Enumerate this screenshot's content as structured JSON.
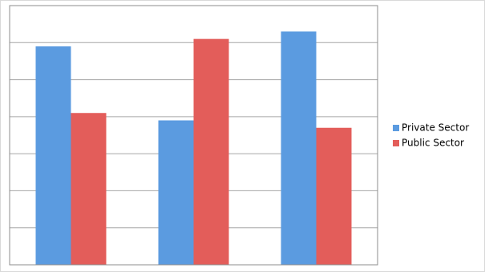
{
  "chart_data": {
    "type": "bar",
    "categories": [
      null,
      null,
      null
    ],
    "series": [
      {
        "name": "Private Sector",
        "color": "#5b9be0",
        "values": [
          5.9,
          3.9,
          6.3
        ]
      },
      {
        "name": "Public Sector",
        "color": "#e35d5a",
        "values": [
          4.1,
          6.1,
          3.7
        ]
      }
    ],
    "ylim": [
      0,
      7
    ],
    "yticks": [
      0,
      1,
      2,
      3,
      4,
      5,
      6,
      7
    ],
    "grid": true,
    "legend": "right"
  }
}
